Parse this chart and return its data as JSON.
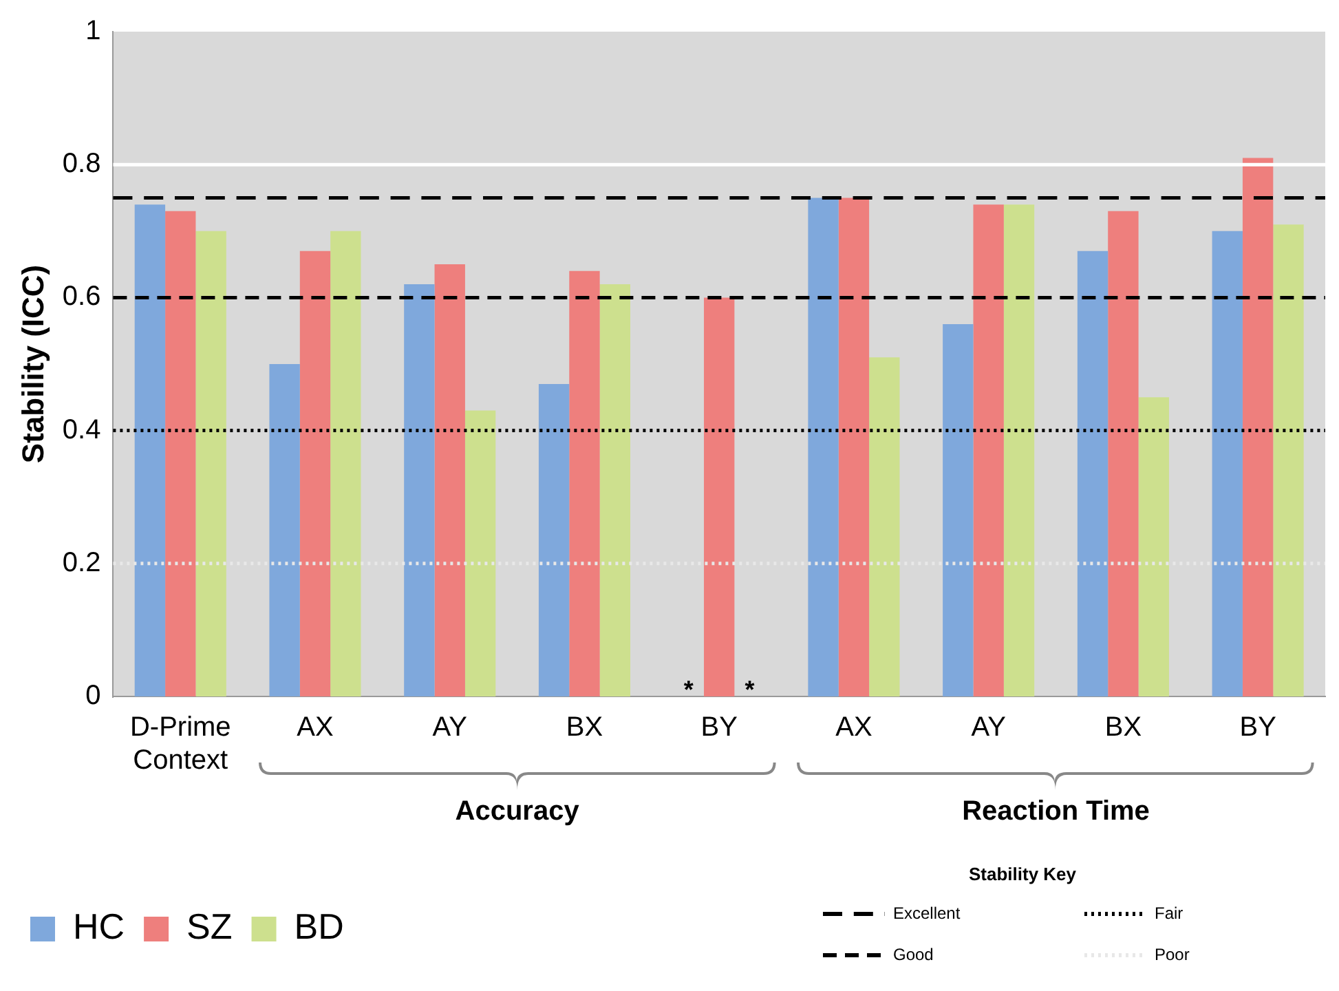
{
  "chart_data": {
    "type": "bar",
    "categories": [
      "D-Prime\nContext",
      "AX",
      "AY",
      "BX",
      "BY",
      "AX",
      "AY",
      "BX",
      "BY"
    ],
    "series": [
      {
        "name": "HC",
        "color": "#7fa8dc",
        "values": [
          0.74,
          0.5,
          0.62,
          0.47,
          null,
          0.75,
          0.56,
          0.67,
          0.7
        ]
      },
      {
        "name": "SZ",
        "color": "#ee7f7d",
        "values": [
          0.73,
          0.67,
          0.65,
          0.64,
          0.6,
          0.75,
          0.74,
          0.73,
          0.81
        ]
      },
      {
        "name": "BD",
        "color": "#cde08e",
        "values": [
          0.7,
          0.7,
          0.43,
          0.62,
          null,
          0.51,
          0.74,
          0.45,
          0.71
        ]
      }
    ],
    "ylabel": "Stability (ICC)",
    "ylim": [
      0,
      1
    ],
    "yticks": [
      0,
      0.2,
      0.4,
      0.6,
      0.8,
      1
    ],
    "legend": "bottom left",
    "ref_lines": [
      {
        "axis": "y",
        "value": 0.75,
        "label": "Excellent",
        "color": "#000000",
        "line_style": "dashed"
      },
      {
        "axis": "y",
        "value": 0.6,
        "label": "Good",
        "color": "#000000",
        "line_style": "dashed"
      },
      {
        "axis": "y",
        "value": 0.4,
        "label": "Fair",
        "color": "#000000",
        "line_style": "dotted"
      },
      {
        "axis": "y",
        "value": 0.2,
        "label": "Poor",
        "color": "#e8e8e8",
        "line_style": "dotted"
      },
      {
        "axis": "y",
        "value": 0.8,
        "color": "#ffffff",
        "line_style": "solid"
      }
    ],
    "annotations": [
      "*",
      "*",
      "Accuracy",
      "Reaction Time",
      "Stability Key"
    ]
  }
}
